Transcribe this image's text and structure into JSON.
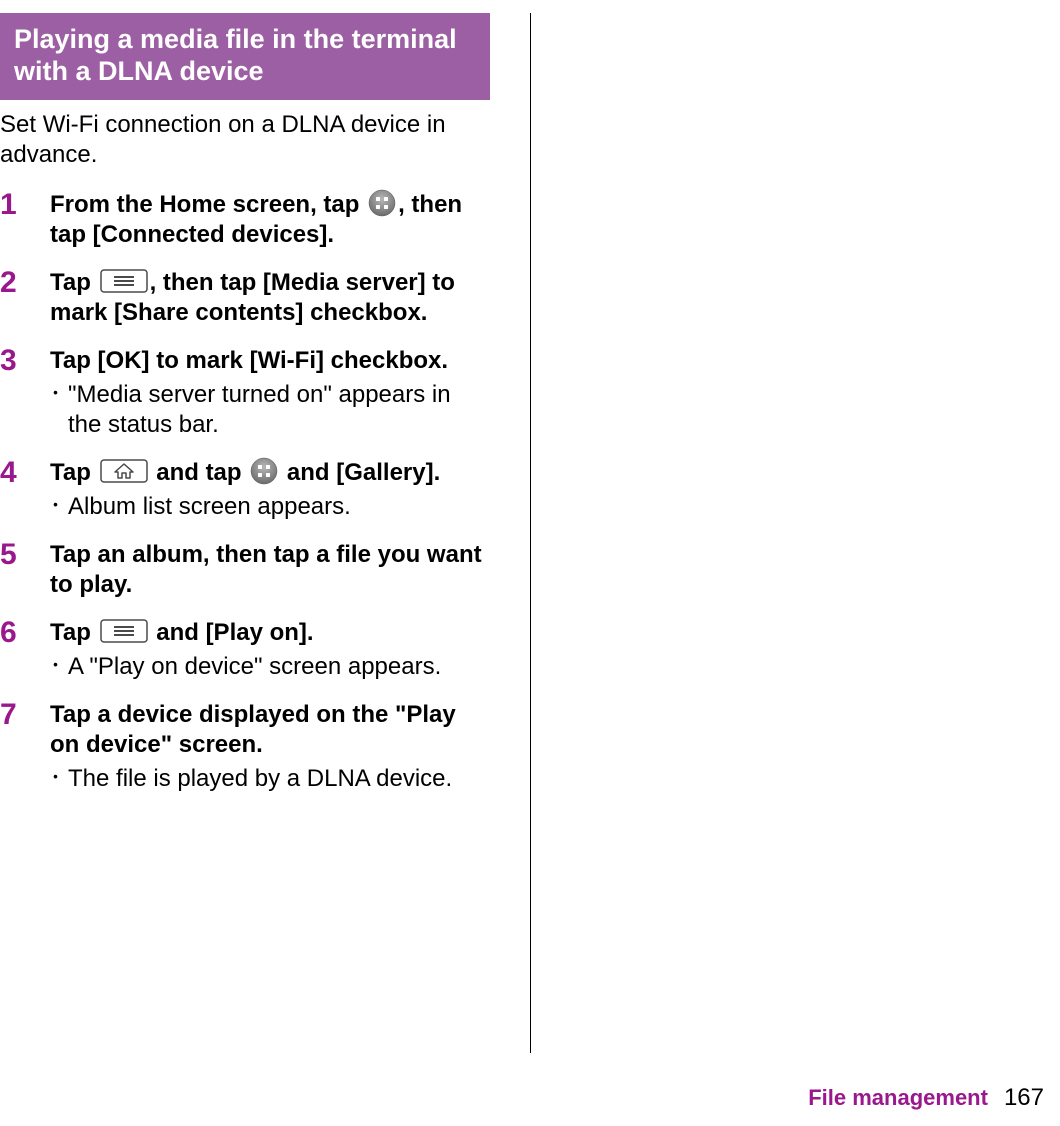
{
  "colors": {
    "header_bg": "#9d5fa3",
    "header_fg": "#ffffff",
    "accent": "#99188d",
    "text": "#000000",
    "icon_gray_dark": "#6b6b6b",
    "icon_gray_light": "#b8b8b8",
    "icon_stroke": "#4a4a4a"
  },
  "header": "Playing a media file in the terminal with a DLNA device",
  "intro": "Set Wi-Fi connection on a DLNA device in advance.",
  "steps": [
    {
      "num": "1",
      "parts": [
        {
          "t": "text",
          "v": "From the Home screen, tap "
        },
        {
          "t": "icon",
          "v": "apps-circle"
        },
        {
          "t": "text",
          "v": ", then tap [Connected devices]."
        }
      ],
      "subs": []
    },
    {
      "num": "2",
      "parts": [
        {
          "t": "text",
          "v": "Tap "
        },
        {
          "t": "icon",
          "v": "menu-key"
        },
        {
          "t": "text",
          "v": ", then tap [Media server] to mark [Share contents] checkbox."
        }
      ],
      "subs": []
    },
    {
      "num": "3",
      "parts": [
        {
          "t": "text",
          "v": "Tap [OK] to mark [Wi-Fi] checkbox."
        }
      ],
      "subs": [
        "\"Media server turned on\" appears in the status bar."
      ]
    },
    {
      "num": "4",
      "parts": [
        {
          "t": "text",
          "v": "Tap "
        },
        {
          "t": "icon",
          "v": "home-key"
        },
        {
          "t": "text",
          "v": " and tap "
        },
        {
          "t": "icon",
          "v": "apps-circle"
        },
        {
          "t": "text",
          "v": " and [Gallery]."
        }
      ],
      "subs": [
        "Album list screen appears."
      ]
    },
    {
      "num": "5",
      "parts": [
        {
          "t": "text",
          "v": "Tap an album, then tap a file you want to play."
        }
      ],
      "subs": []
    },
    {
      "num": "6",
      "parts": [
        {
          "t": "text",
          "v": "Tap "
        },
        {
          "t": "icon",
          "v": "menu-key"
        },
        {
          "t": "text",
          "v": " and [Play on]."
        }
      ],
      "subs": [
        "A \"Play on device\" screen appears."
      ]
    },
    {
      "num": "7",
      "parts": [
        {
          "t": "text",
          "v": "Tap a device displayed on the \"Play on device\" screen."
        }
      ],
      "subs": [
        "The file is played by a DLNA device."
      ]
    }
  ],
  "footer": {
    "label": "File management",
    "page": "167"
  }
}
